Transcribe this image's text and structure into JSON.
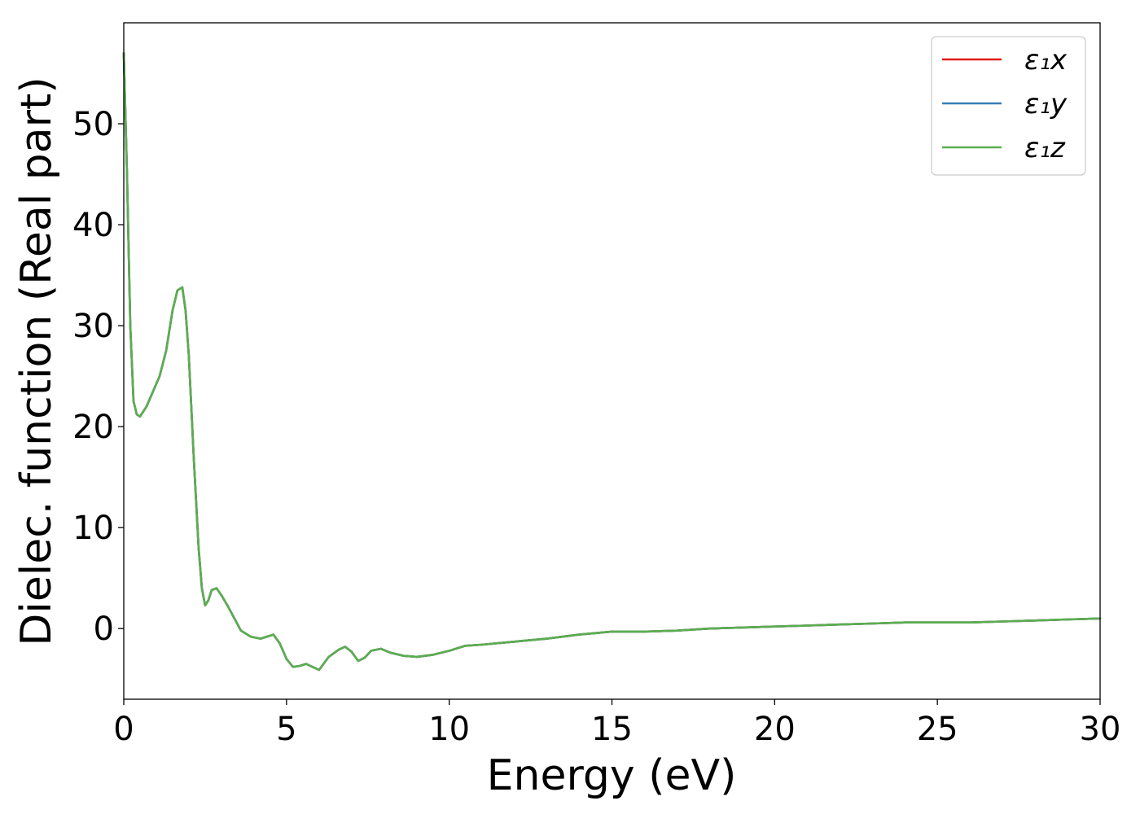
{
  "chart_data": {
    "type": "line",
    "xlabel": "Energy (eV)",
    "ylabel": "Dielec. function (Real part)",
    "xlim": [
      0,
      30
    ],
    "ylim": [
      -7,
      60
    ],
    "xticks": [
      0,
      5,
      10,
      15,
      20,
      25,
      30
    ],
    "yticks": [
      0,
      10,
      20,
      30,
      40,
      50
    ],
    "grid": false,
    "legend_position": "top-right",
    "x": [
      0.0,
      0.1,
      0.2,
      0.3,
      0.4,
      0.5,
      0.7,
      0.9,
      1.1,
      1.3,
      1.5,
      1.65,
      1.8,
      1.9,
      2.0,
      2.15,
      2.3,
      2.4,
      2.5,
      2.6,
      2.7,
      2.85,
      3.0,
      3.2,
      3.4,
      3.6,
      3.9,
      4.2,
      4.4,
      4.6,
      4.8,
      5.0,
      5.2,
      5.4,
      5.6,
      5.8,
      6.0,
      6.3,
      6.6,
      6.8,
      7.0,
      7.2,
      7.4,
      7.6,
      7.9,
      8.2,
      8.6,
      9.0,
      9.5,
      10.0,
      10.5,
      11.0,
      12.0,
      13.0,
      14.0,
      15.0,
      16.0,
      17.0,
      18.0,
      19.0,
      20.0,
      21.0,
      22.0,
      23.0,
      24.0,
      25.0,
      26.0,
      27.0,
      28.0,
      29.0,
      30.0
    ],
    "series": [
      {
        "name": "ε₁x",
        "color": "#e41a1c",
        "values": [
          57.0,
          45.0,
          30.0,
          22.5,
          21.2,
          21.0,
          22.0,
          23.5,
          25.0,
          27.5,
          31.5,
          33.5,
          33.8,
          31.5,
          27.0,
          17.0,
          8.0,
          4.0,
          2.3,
          2.8,
          3.8,
          4.0,
          3.3,
          2.2,
          1.0,
          -0.2,
          -0.8,
          -1.0,
          -0.8,
          -0.6,
          -1.5,
          -3.0,
          -3.8,
          -3.7,
          -3.5,
          -3.8,
          -4.1,
          -2.8,
          -2.1,
          -1.8,
          -2.3,
          -3.2,
          -2.9,
          -2.2,
          -2.0,
          -2.4,
          -2.7,
          -2.8,
          -2.6,
          -2.2,
          -1.7,
          -1.6,
          -1.3,
          -1.0,
          -0.6,
          -0.3,
          -0.3,
          -0.2,
          0.0,
          0.1,
          0.2,
          0.3,
          0.4,
          0.5,
          0.6,
          0.6,
          0.6,
          0.7,
          0.8,
          0.9,
          1.0
        ]
      },
      {
        "name": "ε₁y",
        "color": "#377eb8",
        "values": [
          57.0,
          45.0,
          30.0,
          22.5,
          21.2,
          21.0,
          22.0,
          23.5,
          25.0,
          27.5,
          31.5,
          33.5,
          33.8,
          31.5,
          27.0,
          17.0,
          8.0,
          4.0,
          2.3,
          2.8,
          3.8,
          4.0,
          3.3,
          2.2,
          1.0,
          -0.2,
          -0.8,
          -1.0,
          -0.8,
          -0.6,
          -1.5,
          -3.0,
          -3.8,
          -3.7,
          -3.5,
          -3.8,
          -4.1,
          -2.8,
          -2.1,
          -1.8,
          -2.3,
          -3.2,
          -2.9,
          -2.2,
          -2.0,
          -2.4,
          -2.7,
          -2.8,
          -2.6,
          -2.2,
          -1.7,
          -1.6,
          -1.3,
          -1.0,
          -0.6,
          -0.3,
          -0.3,
          -0.2,
          0.0,
          0.1,
          0.2,
          0.3,
          0.4,
          0.5,
          0.6,
          0.6,
          0.6,
          0.7,
          0.8,
          0.9,
          1.0
        ]
      },
      {
        "name": "ε₁z",
        "color": "#5aae4f",
        "values": [
          57.0,
          45.0,
          30.0,
          22.5,
          21.2,
          21.0,
          22.0,
          23.5,
          25.0,
          27.5,
          31.5,
          33.5,
          33.8,
          31.5,
          27.0,
          17.0,
          8.0,
          4.0,
          2.3,
          2.8,
          3.8,
          4.0,
          3.3,
          2.2,
          1.0,
          -0.2,
          -0.8,
          -1.0,
          -0.8,
          -0.6,
          -1.5,
          -3.0,
          -3.8,
          -3.7,
          -3.5,
          -3.8,
          -4.1,
          -2.8,
          -2.1,
          -1.8,
          -2.3,
          -3.2,
          -2.9,
          -2.2,
          -2.0,
          -2.4,
          -2.7,
          -2.8,
          -2.6,
          -2.2,
          -1.7,
          -1.6,
          -1.3,
          -1.0,
          -0.6,
          -0.3,
          -0.3,
          -0.2,
          0.0,
          0.1,
          0.2,
          0.3,
          0.4,
          0.5,
          0.6,
          0.6,
          0.6,
          0.7,
          0.8,
          0.9,
          1.0
        ]
      }
    ]
  }
}
